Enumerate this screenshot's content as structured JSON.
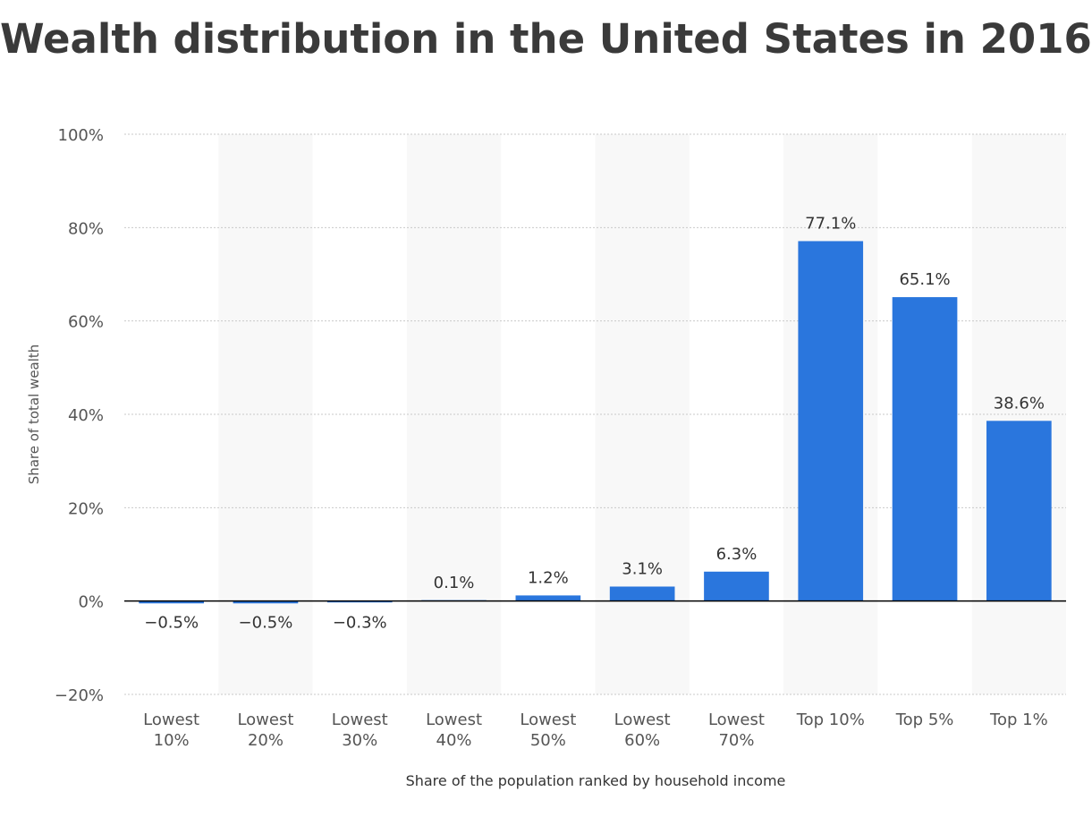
{
  "chart_data": {
    "type": "bar",
    "title": "Wealth distribution in the United States in 2016",
    "xlabel": "Share of the population ranked by household income",
    "ylabel": "Share of total wealth",
    "ylim": [
      -20,
      100
    ],
    "yticks": [
      -20,
      0,
      20,
      40,
      60,
      80,
      100
    ],
    "ytick_labels": [
      "−20%",
      "0%",
      "20%",
      "40%",
      "60%",
      "80%",
      "100%"
    ],
    "grid": true,
    "categories": [
      [
        "Lowest",
        "10%"
      ],
      [
        "Lowest",
        "20%"
      ],
      [
        "Lowest",
        "30%"
      ],
      [
        "Lowest",
        "40%"
      ],
      [
        "Lowest",
        "50%"
      ],
      [
        "Lowest",
        "60%"
      ],
      [
        "Lowest",
        "70%"
      ],
      [
        "Top 10%"
      ],
      [
        "Top 5%"
      ],
      [
        "Top 1%"
      ]
    ],
    "values": [
      -0.5,
      -0.5,
      -0.3,
      0.1,
      1.2,
      3.1,
      6.3,
      77.1,
      65.1,
      38.6
    ],
    "data_labels": [
      "−0.5%",
      "−0.5%",
      "−0.3%",
      "0.1%",
      "1.2%",
      "3.1%",
      "6.3%",
      "77.1%",
      "65.1%",
      "38.6%"
    ],
    "colors": {
      "bar": "#2a76dd",
      "band": "#f8f8f8",
      "grid": "#c9c9c9",
      "zero_line": "#000000",
      "tick_text": "#555555",
      "label_text": "#333333"
    }
  }
}
